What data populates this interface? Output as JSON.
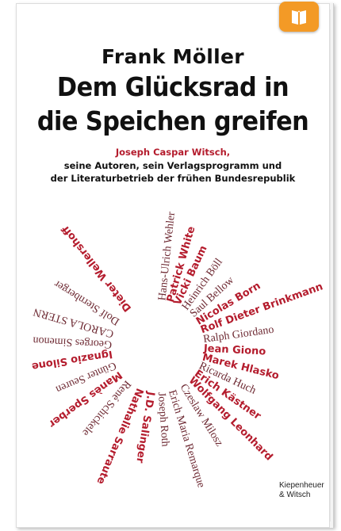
{
  "book": {
    "author": "Frank Möller",
    "title_line1": "Dem Glücksrad in",
    "title_line2": "die Speichen greifen",
    "subtitle_line1": "Joseph Caspar Witsch,",
    "subtitle_line2": "seine Autoren, sein Verlagsprogramm und",
    "subtitle_line3": "der Literaturbetrieb der frühen Bundesrepublik",
    "publisher_line1": "Kiepenheuer",
    "publisher_line2": "& Witsch"
  },
  "spokes": [
    {
      "text": "Hans-Ulrich Wehler",
      "angle": -84,
      "style": "serif"
    },
    {
      "text": "Patrick White",
      "angle": -74,
      "style": "bold"
    },
    {
      "text": "Vicki Baum",
      "angle": -65,
      "style": "bold"
    },
    {
      "text": "Heinrich Böll",
      "angle": -54,
      "style": "serif"
    },
    {
      "text": "Saul Bellow",
      "angle": -42,
      "style": "serif"
    },
    {
      "text": "Nicolas Born",
      "angle": -31,
      "style": "bold"
    },
    {
      "text": "Rolf Dieter Brinkmann",
      "angle": -20,
      "style": "bold"
    },
    {
      "text": "Ralph Giordano",
      "angle": -8,
      "style": "serif"
    },
    {
      "text": "Jean Giono",
      "angle": 3,
      "style": "bold"
    },
    {
      "text": "Marek Hlasko",
      "angle": 14,
      "style": "bold"
    },
    {
      "text": "Ricarda Huch",
      "angle": 25,
      "style": "serif"
    },
    {
      "text": "Erich Kästner",
      "angle": 35,
      "style": "bold"
    },
    {
      "text": "Wolfgang Leonhard",
      "angle": 45,
      "style": "bold"
    },
    {
      "text": "Czeslaw Milosz",
      "angle": 58,
      "style": "serif"
    },
    {
      "text": "Erich Maria Remarque",
      "angle": 73,
      "style": "serif"
    },
    {
      "text": "Joseph Roth",
      "angle": 86,
      "style": "serif"
    },
    {
      "text": "J.D. Salinger",
      "angle": 99,
      "style": "bold"
    },
    {
      "text": "Nathalie Sarraute",
      "angle": 113,
      "style": "bold"
    },
    {
      "text": "René Schickele",
      "angle": 130,
      "style": "serif"
    },
    {
      "text": "Manès Sperber",
      "angle": 144,
      "style": "bold"
    },
    {
      "text": "Günter Seuren",
      "angle": 157,
      "style": "serif"
    },
    {
      "text": "Ignazio Silone",
      "angle": 171,
      "style": "bold"
    },
    {
      "text": "Georges Simenon",
      "angle": 183,
      "style": "serif"
    },
    {
      "text": "CAROLA STERN",
      "angle": 196,
      "style": "serif"
    },
    {
      "text": "Dolf Sternberger",
      "angle": 212,
      "style": "serif"
    },
    {
      "text": "Dieter Wellershoff",
      "angle": 232,
      "style": "bold"
    }
  ],
  "colors": {
    "accent_red": "#b41c2d",
    "spoke_red": "#a3253a",
    "spoke_dark": "#6e2a33",
    "reader_button": "#f39a26"
  },
  "icons": {
    "reader_button": "open-book-icon"
  }
}
